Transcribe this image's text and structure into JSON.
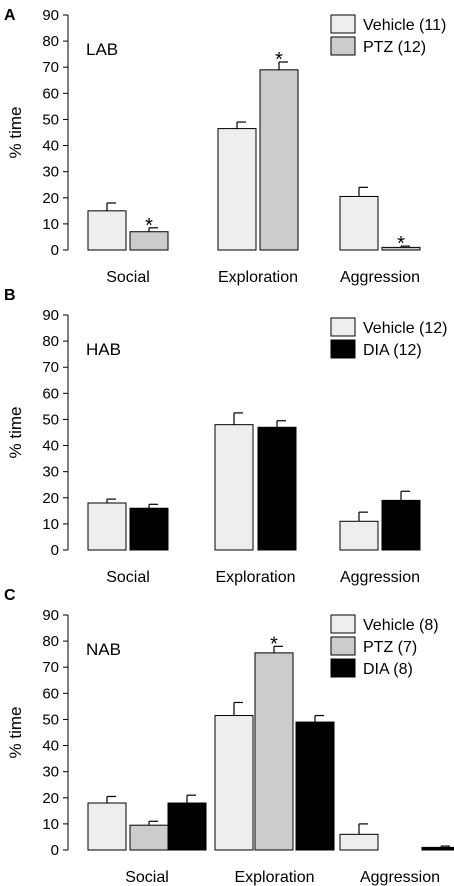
{
  "colors": {
    "Vehicle": "#eeeeee",
    "PTZ": "#cccccc",
    "DIA": "#000000",
    "axis": "#000000"
  },
  "chart_data": [
    {
      "type": "bar",
      "panel_label": "A",
      "group_label": "LAB",
      "ylabel": "% time",
      "ylim": [
        0,
        90
      ],
      "yticks": [
        "0",
        "10",
        "20",
        "30",
        "40",
        "50",
        "60",
        "70",
        "80",
        "90"
      ],
      "categories": [
        "Social",
        "Exploration",
        "Aggression"
      ],
      "legend_position": "top-right",
      "series": [
        {
          "name": "Vehicle (11)",
          "key": "Vehicle",
          "values": [
            15,
            46.5,
            20.5
          ],
          "errors": [
            3,
            2.5,
            3.5
          ],
          "significant": [
            false,
            false,
            false
          ]
        },
        {
          "name": "PTZ (12)",
          "key": "PTZ",
          "values": [
            7,
            69,
            1
          ],
          "errors": [
            1.5,
            3,
            0.5
          ],
          "significant": [
            true,
            true,
            true
          ]
        }
      ],
      "significance_marker": "*"
    },
    {
      "type": "bar",
      "panel_label": "B",
      "group_label": "HAB",
      "ylabel": "% time",
      "ylim": [
        0,
        90
      ],
      "yticks": [
        "0",
        "10",
        "20",
        "30",
        "40",
        "50",
        "60",
        "70",
        "80",
        "90"
      ],
      "categories": [
        "Social",
        "Exploration",
        "Aggression"
      ],
      "legend_position": "top-right",
      "series": [
        {
          "name": "Vehicle (12)",
          "key": "Vehicle",
          "values": [
            18,
            48,
            11
          ],
          "errors": [
            1.5,
            4.5,
            3.5
          ],
          "significant": [
            false,
            false,
            false
          ]
        },
        {
          "name": "DIA (12)",
          "key": "DIA",
          "values": [
            16,
            47,
            19
          ],
          "errors": [
            1.5,
            2.5,
            3.5
          ],
          "significant": [
            false,
            false,
            false
          ]
        }
      ],
      "significance_marker": "*"
    },
    {
      "type": "bar",
      "panel_label": "C",
      "group_label": "NAB",
      "ylabel": "% time",
      "ylim": [
        0,
        90
      ],
      "yticks": [
        "0",
        "10",
        "20",
        "30",
        "40",
        "50",
        "60",
        "70",
        "80",
        "90"
      ],
      "categories": [
        "Social",
        "Exploration",
        "Aggression"
      ],
      "legend_position": "top-right",
      "series": [
        {
          "name": "Vehicle (8)",
          "key": "Vehicle",
          "values": [
            18,
            51.5,
            6
          ],
          "errors": [
            2.5,
            5,
            4
          ],
          "significant": [
            false,
            false,
            false
          ]
        },
        {
          "name": "PTZ (7)",
          "key": "PTZ",
          "values": [
            9.5,
            75.5,
            0
          ],
          "errors": [
            1.5,
            2.5,
            0
          ],
          "significant": [
            false,
            true,
            false
          ]
        },
        {
          "name": "DIA (8)",
          "key": "DIA",
          "values": [
            18,
            49,
            1
          ],
          "errors": [
            3,
            2.5,
            0.5
          ],
          "significant": [
            false,
            false,
            false
          ]
        }
      ],
      "significance_marker": "*"
    }
  ]
}
